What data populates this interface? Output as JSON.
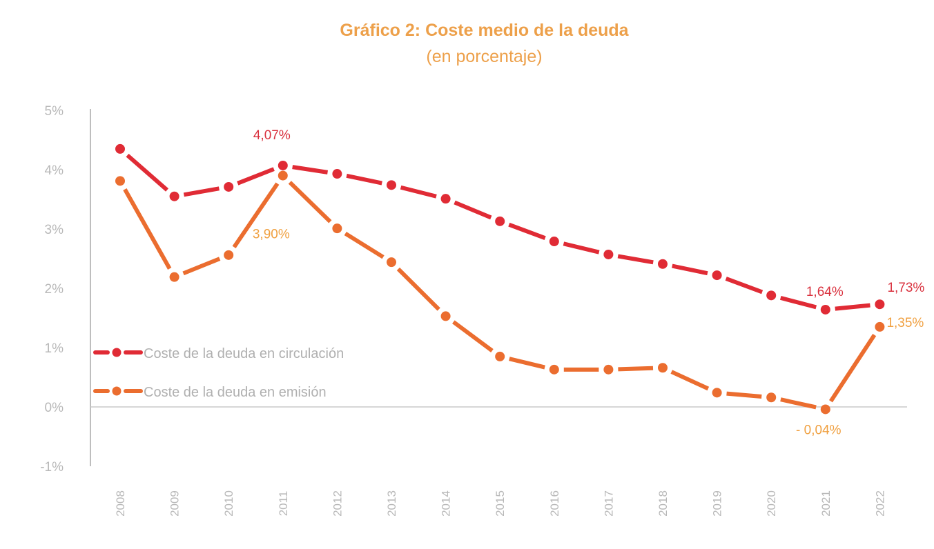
{
  "chart_data": {
    "type": "line",
    "title": "Gráfico 2: Coste medio de la deuda",
    "subtitle": "(en porcentaje)",
    "xlabel": "",
    "ylabel": "",
    "x": [
      "2008",
      "2009",
      "2010",
      "2011",
      "2012",
      "2013",
      "2014",
      "2015",
      "2016",
      "2017",
      "2018",
      "2019",
      "2020",
      "2021",
      "2022"
    ],
    "ylim": [
      -1,
      5
    ],
    "yticks": [
      5,
      4,
      3,
      2,
      1,
      0,
      -1
    ],
    "ytick_labels": [
      "5%",
      "4%",
      "3%",
      "2%",
      "1%",
      "0%",
      "-1%"
    ],
    "grid": false,
    "legend_position": "left-center",
    "series": [
      {
        "name": "Coste de la deuda en circulación",
        "color": "#e02b35",
        "values": [
          4.35,
          3.55,
          3.71,
          4.07,
          3.93,
          3.74,
          3.51,
          3.13,
          2.79,
          2.57,
          2.41,
          2.22,
          1.88,
          1.64,
          1.73
        ],
        "annotations": [
          {
            "index": 3,
            "text": "4,07%"
          },
          {
            "index": 13,
            "text": "1,64%"
          },
          {
            "index": 14,
            "text": "1,73%"
          }
        ]
      },
      {
        "name": "Coste de la deuda en emisión",
        "color": "#eb6d2f",
        "values": [
          3.81,
          2.19,
          2.56,
          3.9,
          3.01,
          2.44,
          1.53,
          0.85,
          0.63,
          0.63,
          0.66,
          0.24,
          0.16,
          -0.04,
          1.35
        ],
        "annotations": [
          {
            "index": 3,
            "text": "3,90%"
          },
          {
            "index": 13,
            "text": "- 0,04%"
          },
          {
            "index": 14,
            "text": "1,35%"
          }
        ]
      }
    ],
    "label_color_red": "#d9303d",
    "label_color_orange": "#f0a040"
  }
}
